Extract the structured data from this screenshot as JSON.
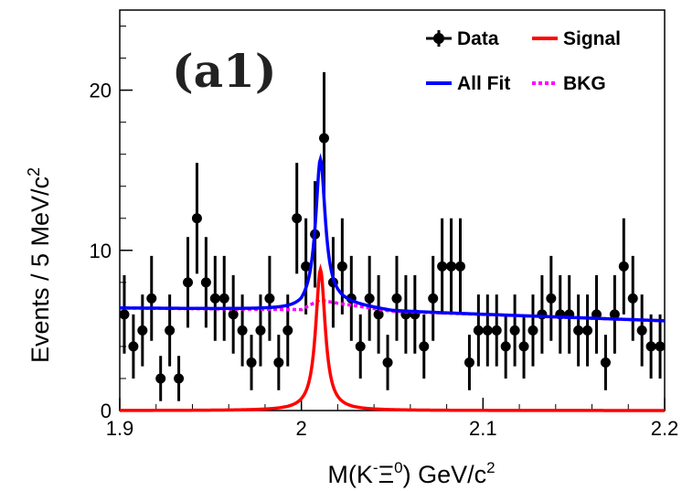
{
  "chart_data": {
    "type": "scatter",
    "panel_label": "(a1)",
    "xlabel": {
      "prefix": "M(K",
      "sup1": "-",
      "mid": "Ξ",
      "sup2": "0",
      "suffix": ") GeV/c",
      "sup3": "2"
    },
    "ylabel": {
      "main": "Events / 5 MeV/c",
      "sup": "2"
    },
    "xlim": [
      1.9,
      2.2
    ],
    "ylim": [
      0,
      25
    ],
    "xticks": [
      1.9,
      2.0,
      2.1,
      2.2
    ],
    "xtick_labels": [
      "1.9",
      "2",
      "2.1",
      "2.2"
    ],
    "yticks": [
      0,
      10,
      20
    ],
    "ytick_labels": [
      "0",
      "10",
      "20"
    ],
    "grid": false,
    "legend_position": "top-right",
    "legend": [
      {
        "name": "Data",
        "color": "#000000",
        "style": "marker"
      },
      {
        "name": "Signal",
        "color": "#ff0000",
        "style": "solid"
      },
      {
        "name": "All Fit",
        "color": "#0000ff",
        "style": "solid"
      },
      {
        "name": "BKG",
        "color": "#ff00ff",
        "style": "dotted"
      }
    ],
    "series": [
      {
        "name": "Data",
        "type": "errorbar",
        "color": "#000000",
        "x": [
          1.9025,
          1.9075,
          1.9125,
          1.9175,
          1.9225,
          1.9275,
          1.9325,
          1.9375,
          1.9425,
          1.9475,
          1.9525,
          1.9575,
          1.9625,
          1.9675,
          1.9725,
          1.9775,
          1.9825,
          1.9875,
          1.9925,
          1.9975,
          2.0025,
          2.0075,
          2.0125,
          2.0175,
          2.0225,
          2.0275,
          2.0325,
          2.0375,
          2.0425,
          2.0475,
          2.0525,
          2.0575,
          2.0625,
          2.0675,
          2.0725,
          2.0775,
          2.0825,
          2.0875,
          2.0925,
          2.0975,
          2.1025,
          2.1075,
          2.1125,
          2.1175,
          2.1225,
          2.1275,
          2.1325,
          2.1375,
          2.1425,
          2.1475,
          2.1525,
          2.1575,
          2.1625,
          2.1675,
          2.1725,
          2.1775,
          2.1825,
          2.1875,
          2.1925,
          2.1975
        ],
        "y": [
          6,
          4,
          5,
          7,
          2,
          5,
          2,
          8,
          12,
          8,
          7,
          7,
          6,
          5,
          3,
          5,
          7,
          3,
          5,
          12,
          9,
          11,
          17,
          8,
          9,
          7,
          4,
          7,
          6,
          3,
          7,
          6,
          6,
          4,
          7,
          9,
          9,
          9,
          3,
          5,
          5,
          5,
          4,
          5,
          4,
          5,
          6,
          7,
          6,
          6,
          5,
          5,
          6,
          3,
          6,
          9,
          7,
          5,
          4,
          4
        ],
        "err": [
          2.45,
          2.0,
          2.24,
          2.65,
          1.41,
          2.24,
          1.41,
          2.83,
          3.46,
          2.83,
          2.65,
          2.65,
          2.45,
          2.24,
          1.73,
          2.24,
          2.65,
          1.73,
          2.24,
          3.46,
          3.0,
          3.32,
          4.12,
          2.83,
          3.0,
          2.65,
          2.0,
          2.65,
          2.45,
          1.73,
          2.65,
          2.45,
          2.45,
          2.0,
          2.65,
          3.0,
          3.0,
          3.0,
          1.73,
          2.24,
          2.24,
          2.24,
          2.0,
          2.24,
          2.0,
          2.24,
          2.45,
          2.65,
          2.45,
          2.45,
          2.24,
          2.24,
          2.45,
          1.73,
          2.45,
          3.0,
          2.65,
          2.24,
          2.0,
          2.0
        ]
      },
      {
        "name": "Signal",
        "type": "lorentzian",
        "color": "#ff0000",
        "peak_x": 2.0105,
        "peak_y": 8.8,
        "half_width": 0.0032
      },
      {
        "name": "BKG",
        "type": "line",
        "color": "#ff00ff",
        "x": [
          1.9,
          2.0,
          2.01,
          2.02,
          2.05,
          2.1,
          2.15,
          2.2
        ],
        "y": [
          6.4,
          6.3,
          6.9,
          6.7,
          6.2,
          6.0,
          5.8,
          5.6
        ]
      },
      {
        "name": "All Fit",
        "type": "sum",
        "color": "#0000ff",
        "of": [
          "Signal",
          "BKG"
        ]
      }
    ]
  }
}
